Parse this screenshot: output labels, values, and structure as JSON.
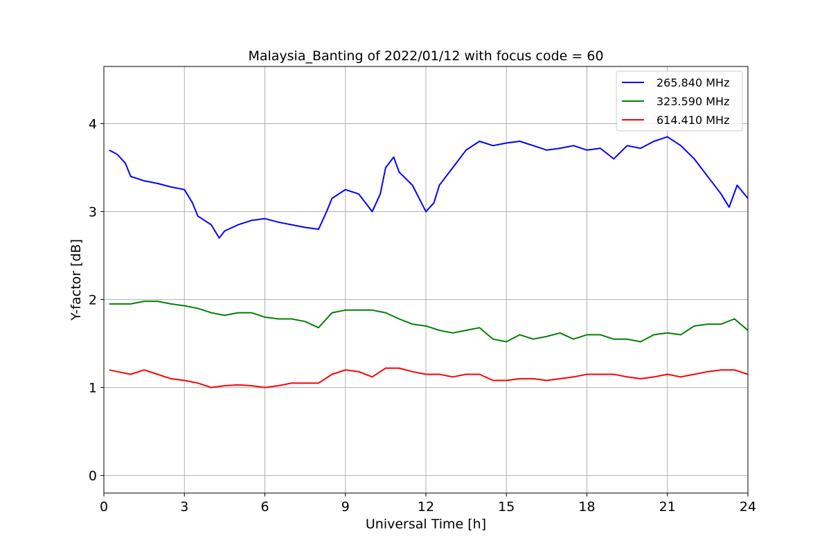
{
  "chart_data": {
    "type": "line",
    "title": "Malaysia_Banting of 2022/01/12 with focus code = 60",
    "xlabel": "Universal Time [h]",
    "ylabel": "Y-factor [dB]",
    "xlim": [
      0,
      24
    ],
    "ylim": [
      -0.2,
      4.65
    ],
    "xticks": [
      0,
      3,
      6,
      9,
      12,
      15,
      18,
      21,
      24
    ],
    "yticks": [
      0,
      1,
      2,
      3,
      4
    ],
    "grid": true,
    "legend_position": "top-right",
    "series": [
      {
        "name": "265.840 MHz",
        "color": "#0000ff",
        "x": [
          0.2,
          0.5,
          0.8,
          1.0,
          1.5,
          2.0,
          2.5,
          3.0,
          3.3,
          3.5,
          4.0,
          4.3,
          4.5,
          5.0,
          5.5,
          6.0,
          6.5,
          7.0,
          7.5,
          8.0,
          8.3,
          8.5,
          9.0,
          9.5,
          10.0,
          10.3,
          10.5,
          10.8,
          11.0,
          11.5,
          12.0,
          12.3,
          12.5,
          13.0,
          13.5,
          14.0,
          14.5,
          15.0,
          15.5,
          16.0,
          16.5,
          17.0,
          17.5,
          18.0,
          18.5,
          19.0,
          19.5,
          20.0,
          20.5,
          21.0,
          21.5,
          22.0,
          22.5,
          23.0,
          23.3,
          23.6,
          24.0
        ],
        "y": [
          3.7,
          3.65,
          3.55,
          3.4,
          3.35,
          3.32,
          3.28,
          3.25,
          3.1,
          2.95,
          2.85,
          2.7,
          2.78,
          2.85,
          2.9,
          2.92,
          2.88,
          2.85,
          2.82,
          2.8,
          3.0,
          3.15,
          3.25,
          3.2,
          3.0,
          3.2,
          3.5,
          3.62,
          3.45,
          3.3,
          3.0,
          3.1,
          3.3,
          3.5,
          3.7,
          3.8,
          3.75,
          3.78,
          3.8,
          3.75,
          3.7,
          3.72,
          3.75,
          3.7,
          3.72,
          3.6,
          3.75,
          3.72,
          3.8,
          3.85,
          3.75,
          3.6,
          3.4,
          3.2,
          3.05,
          3.3,
          3.15
        ]
      },
      {
        "name": "323.590 MHz",
        "color": "#008000",
        "x": [
          0.2,
          0.5,
          1.0,
          1.5,
          2.0,
          2.5,
          3.0,
          3.5,
          4.0,
          4.5,
          5.0,
          5.5,
          6.0,
          6.5,
          7.0,
          7.5,
          8.0,
          8.5,
          9.0,
          9.5,
          10.0,
          10.5,
          11.0,
          11.5,
          12.0,
          12.5,
          13.0,
          13.5,
          14.0,
          14.5,
          15.0,
          15.5,
          16.0,
          16.5,
          17.0,
          17.5,
          18.0,
          18.5,
          19.0,
          19.5,
          20.0,
          20.5,
          21.0,
          21.5,
          22.0,
          22.5,
          23.0,
          23.5,
          24.0
        ],
        "y": [
          1.95,
          1.95,
          1.95,
          1.98,
          1.98,
          1.95,
          1.93,
          1.9,
          1.85,
          1.82,
          1.85,
          1.85,
          1.8,
          1.78,
          1.78,
          1.75,
          1.68,
          1.85,
          1.88,
          1.88,
          1.88,
          1.85,
          1.78,
          1.72,
          1.7,
          1.65,
          1.62,
          1.65,
          1.68,
          1.55,
          1.52,
          1.6,
          1.55,
          1.58,
          1.62,
          1.55,
          1.6,
          1.6,
          1.55,
          1.55,
          1.52,
          1.6,
          1.62,
          1.6,
          1.7,
          1.72,
          1.72,
          1.78,
          1.65
        ]
      },
      {
        "name": "614.410 MHz",
        "color": "#ff0000",
        "x": [
          0.2,
          0.5,
          1.0,
          1.5,
          2.0,
          2.5,
          3.0,
          3.5,
          4.0,
          4.5,
          5.0,
          5.5,
          6.0,
          6.5,
          7.0,
          7.5,
          8.0,
          8.5,
          9.0,
          9.5,
          10.0,
          10.5,
          11.0,
          11.5,
          12.0,
          12.5,
          13.0,
          13.5,
          14.0,
          14.5,
          15.0,
          15.5,
          16.0,
          16.5,
          17.0,
          17.5,
          18.0,
          18.5,
          19.0,
          19.5,
          20.0,
          20.5,
          21.0,
          21.5,
          22.0,
          22.5,
          23.0,
          23.5,
          24.0
        ],
        "y": [
          1.2,
          1.18,
          1.15,
          1.2,
          1.15,
          1.1,
          1.08,
          1.05,
          1.0,
          1.02,
          1.03,
          1.02,
          1.0,
          1.02,
          1.05,
          1.05,
          1.05,
          1.15,
          1.2,
          1.18,
          1.12,
          1.22,
          1.22,
          1.18,
          1.15,
          1.15,
          1.12,
          1.15,
          1.15,
          1.08,
          1.08,
          1.1,
          1.1,
          1.08,
          1.1,
          1.12,
          1.15,
          1.15,
          1.15,
          1.12,
          1.1,
          1.12,
          1.15,
          1.12,
          1.15,
          1.18,
          1.2,
          1.2,
          1.15
        ]
      }
    ]
  }
}
